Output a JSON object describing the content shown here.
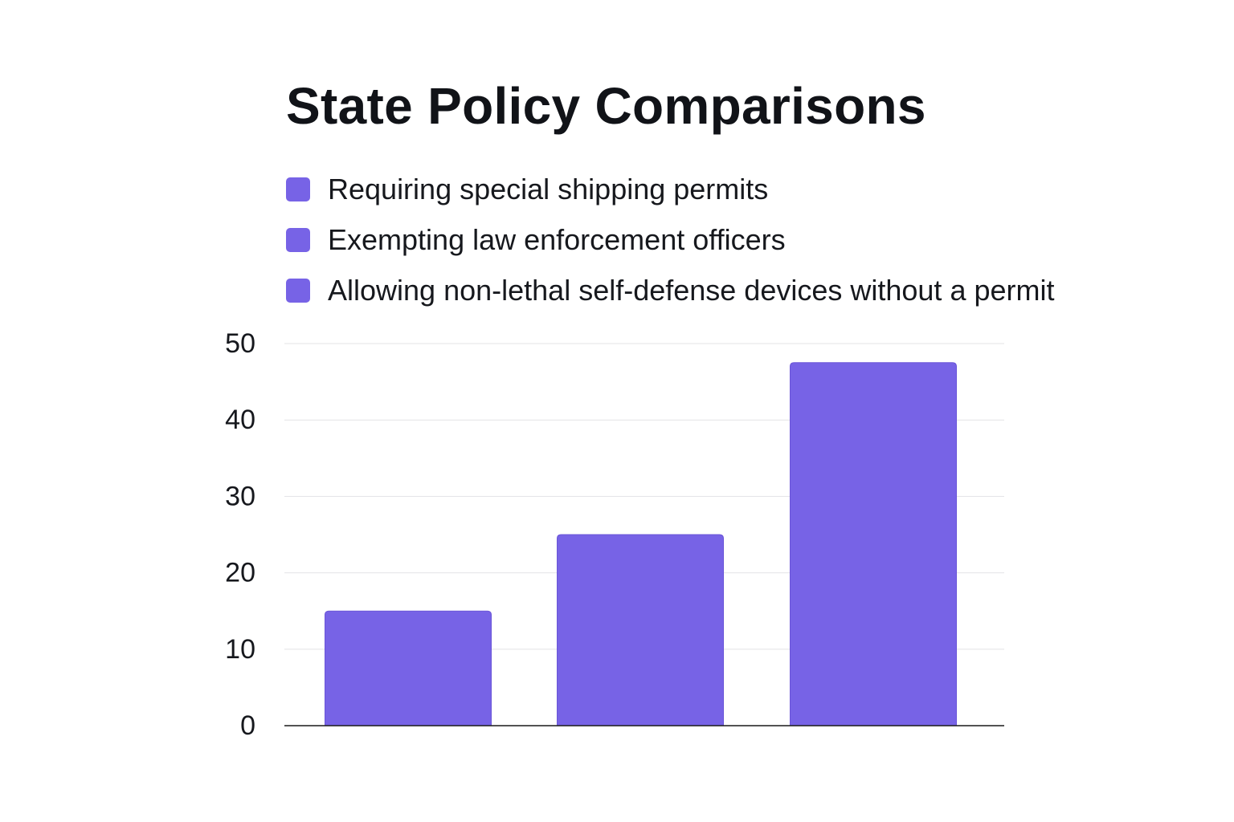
{
  "chart_data": {
    "type": "bar",
    "title": "State Policy Comparisons",
    "xlabel": "",
    "ylabel": "",
    "categories": [
      "Requiring special shipping permits",
      "Exempting law enforcement officers",
      "Allowing non-lethal self-defense devices without a permit"
    ],
    "values": [
      15,
      25,
      47.5
    ],
    "ylim": [
      0,
      50
    ],
    "yticks": [
      0,
      10,
      20,
      30,
      40,
      50
    ],
    "grid": true,
    "legend_position": "top-left",
    "color": "#7763e6"
  }
}
